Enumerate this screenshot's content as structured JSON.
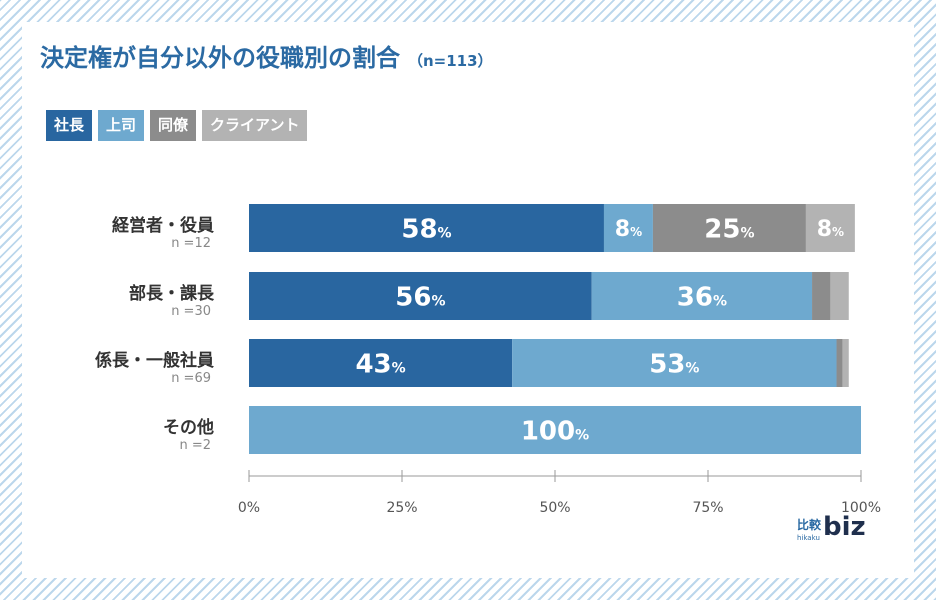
{
  "title": "決定権が自分以外の役職別の割合",
  "title_n": "（n=113）",
  "colors": {
    "president": "#2966a0",
    "boss": "#6ea9cf",
    "colleague": "#8c8c8c",
    "client": "#b3b3b3"
  },
  "logo": {
    "kanji": "比較",
    "sub": "hikaku",
    "biz": "biz"
  },
  "chart_data": {
    "type": "bar",
    "orientation": "horizontal",
    "stacked": true,
    "series": [
      {
        "name": "社長",
        "color": "#2966a0",
        "values": [
          58,
          56,
          43,
          0
        ]
      },
      {
        "name": "上司",
        "color": "#6ea9cf",
        "values": [
          8,
          36,
          53,
          100
        ]
      },
      {
        "name": "同僚",
        "color": "#8c8c8c",
        "values": [
          25,
          3,
          1,
          0
        ]
      },
      {
        "name": "クライアント",
        "color": "#b3b3b3",
        "values": [
          8,
          3,
          1,
          0
        ]
      }
    ],
    "categories": [
      {
        "label": "経営者・役員",
        "n": "n =12"
      },
      {
        "label": "部長・課長",
        "n": "n =30"
      },
      {
        "label": "係長・一般社員",
        "n": "n =69"
      },
      {
        "label": "その他",
        "n": "n =2"
      }
    ],
    "data_labels": [
      [
        "58",
        "8",
        "25",
        "8"
      ],
      [
        "56",
        "36",
        "",
        ""
      ],
      [
        "43",
        "53",
        "",
        ""
      ],
      [
        "",
        "100",
        "",
        ""
      ]
    ],
    "label_unit": "%",
    "xlim": [
      0,
      100
    ],
    "xticks": [
      "0%",
      "25%",
      "50%",
      "75%",
      "100%"
    ],
    "grid": false,
    "legend": "top-left"
  }
}
